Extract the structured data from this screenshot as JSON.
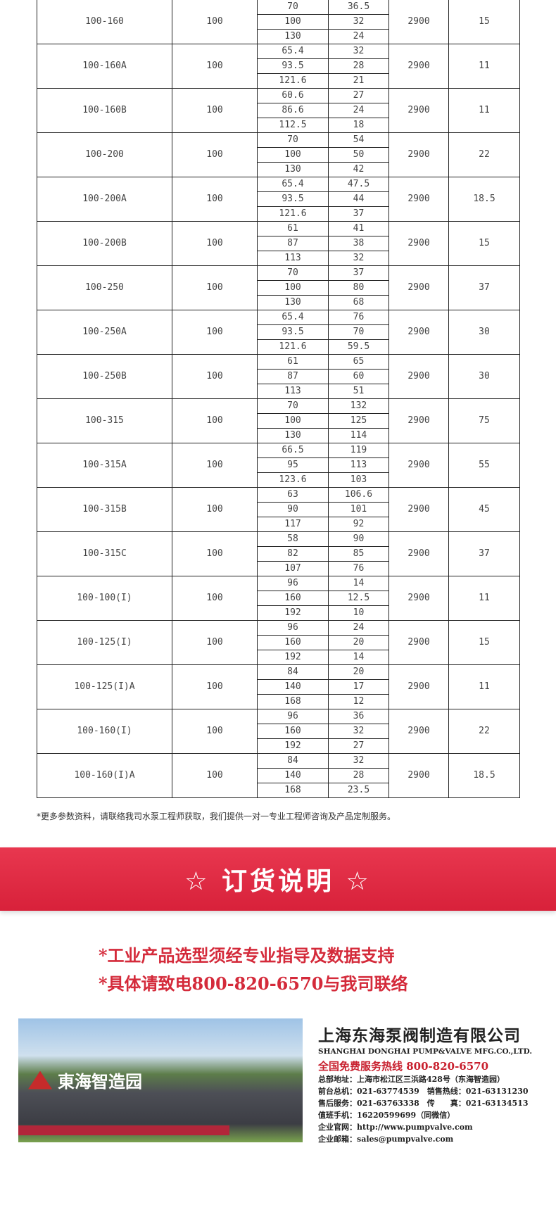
{
  "table": {
    "rows": [
      {
        "model": "100-160",
        "inlet": "100",
        "flow": [
          "70",
          "100",
          "130"
        ],
        "head": [
          "36.5",
          "32",
          "24"
        ],
        "speed": "2900",
        "power": "15"
      },
      {
        "model": "100-160A",
        "inlet": "100",
        "flow": [
          "65.4",
          "93.5",
          "121.6"
        ],
        "head": [
          "32",
          "28",
          "21"
        ],
        "speed": "2900",
        "power": "11"
      },
      {
        "model": "100-160B",
        "inlet": "100",
        "flow": [
          "60.6",
          "86.6",
          "112.5"
        ],
        "head": [
          "27",
          "24",
          "18"
        ],
        "speed": "2900",
        "power": "11"
      },
      {
        "model": "100-200",
        "inlet": "100",
        "flow": [
          "70",
          "100",
          "130"
        ],
        "head": [
          "54",
          "50",
          "42"
        ],
        "speed": "2900",
        "power": "22"
      },
      {
        "model": "100-200A",
        "inlet": "100",
        "flow": [
          "65.4",
          "93.5",
          "121.6"
        ],
        "head": [
          "47.5",
          "44",
          "37"
        ],
        "speed": "2900",
        "power": "18.5"
      },
      {
        "model": "100-200B",
        "inlet": "100",
        "flow": [
          "61",
          "87",
          "113"
        ],
        "head": [
          "41",
          "38",
          "32"
        ],
        "speed": "2900",
        "power": "15"
      },
      {
        "model": "100-250",
        "inlet": "100",
        "flow": [
          "70",
          "100",
          "130"
        ],
        "head": [
          "37",
          "80",
          "68"
        ],
        "speed": "2900",
        "power": "37"
      },
      {
        "model": "100-250A",
        "inlet": "100",
        "flow": [
          "65.4",
          "93.5",
          "121.6"
        ],
        "head": [
          "76",
          "70",
          "59.5"
        ],
        "speed": "2900",
        "power": "30"
      },
      {
        "model": "100-250B",
        "inlet": "100",
        "flow": [
          "61",
          "87",
          "113"
        ],
        "head": [
          "65",
          "60",
          "51"
        ],
        "speed": "2900",
        "power": "30"
      },
      {
        "model": "100-315",
        "inlet": "100",
        "flow": [
          "70",
          "100",
          "130"
        ],
        "head": [
          "132",
          "125",
          "114"
        ],
        "speed": "2900",
        "power": "75"
      },
      {
        "model": "100-315A",
        "inlet": "100",
        "flow": [
          "66.5",
          "95",
          "123.6"
        ],
        "head": [
          "119",
          "113",
          "103"
        ],
        "speed": "2900",
        "power": "55"
      },
      {
        "model": "100-315B",
        "inlet": "100",
        "flow": [
          "63",
          "90",
          "117"
        ],
        "head": [
          "106.6",
          "101",
          "92"
        ],
        "speed": "2900",
        "power": "45"
      },
      {
        "model": "100-315C",
        "inlet": "100",
        "flow": [
          "58",
          "82",
          "107"
        ],
        "head": [
          "90",
          "85",
          "76"
        ],
        "speed": "2900",
        "power": "37"
      },
      {
        "model": "100-100(I)",
        "inlet": "100",
        "flow": [
          "96",
          "160",
          "192"
        ],
        "head": [
          "14",
          "12.5",
          "10"
        ],
        "speed": "2900",
        "power": "11"
      },
      {
        "model": "100-125(I)",
        "inlet": "100",
        "flow": [
          "96",
          "160",
          "192"
        ],
        "head": [
          "24",
          "20",
          "14"
        ],
        "speed": "2900",
        "power": "15"
      },
      {
        "model": "100-125(I)A",
        "inlet": "100",
        "flow": [
          "84",
          "140",
          "168"
        ],
        "head": [
          "20",
          "17",
          "12"
        ],
        "speed": "2900",
        "power": "11"
      },
      {
        "model": "100-160(I)",
        "inlet": "100",
        "flow": [
          "96",
          "160",
          "192"
        ],
        "head": [
          "36",
          "32",
          "27"
        ],
        "speed": "2900",
        "power": "22"
      },
      {
        "model": "100-160(I)A",
        "inlet": "100",
        "flow": [
          "84",
          "140",
          "168"
        ],
        "head": [
          "32",
          "28",
          "23.5"
        ],
        "speed": "2900",
        "power": "18.5"
      }
    ]
  },
  "note": "*更多参数资料，请联络我司水泵工程师获取，我们提供一对一专业工程师咨询及产品定制服务。",
  "banner": {
    "title": "☆ 订货说明 ☆",
    "color": "#dd2a41"
  },
  "order": {
    "line1": "*工业产品选型须经专业指导及数据支持",
    "line2": "*具体请致电800-820-6570与我司联络"
  },
  "photo": {
    "logo_text": "東海智造园"
  },
  "company": {
    "name_cn": "上海东海泵阀制造有限公司",
    "name_en": "SHANGHAI DONGHAI PUMP&VALVE MFG.CO.,LTD.",
    "hotline": "全国免费服务热线 800-820-6570",
    "lines": [
      "总部地址：上海市松江区三浜路428号（东海智造园）",
      "前台总机：021-63774539　销售热线：021-63131230",
      "售后服务：021-63763338　传　　真：021-63134513",
      "值班手机：16220599699（同微信）",
      "企业官网：http://www.pumpvalve.com",
      "企业邮箱：sales@pumpvalve.com"
    ]
  }
}
